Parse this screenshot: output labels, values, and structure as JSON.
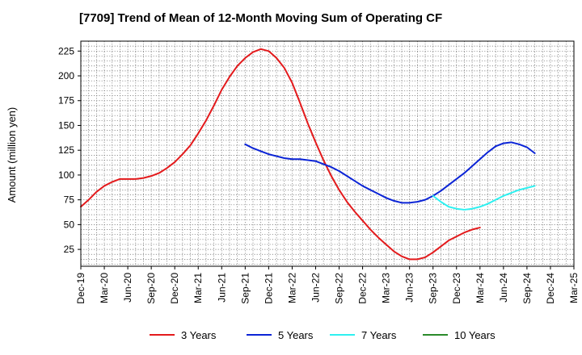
{
  "chart_data": {
    "type": "line",
    "title": "[7709]  Trend of Mean of 12-Month Moving Sum of Operating CF",
    "xlabel": "",
    "ylabel": "Amount (million yen)",
    "ylim": [
      8,
      235
    ],
    "yticks": [
      25,
      50,
      75,
      100,
      125,
      150,
      175,
      200,
      225
    ],
    "categories": [
      "Dec-19",
      "Mar-20",
      "Jun-20",
      "Sep-20",
      "Dec-20",
      "Mar-21",
      "Jun-21",
      "Sep-21",
      "Dec-21",
      "Mar-22",
      "Jun-22",
      "Sep-22",
      "Dec-22",
      "Mar-23",
      "Jun-23",
      "Sep-23",
      "Dec-23",
      "Mar-24",
      "Jun-24",
      "Sep-24",
      "Dec-24",
      "Mar-25"
    ],
    "grid": true,
    "legend_position": "bottom",
    "series": [
      {
        "name": "3 Years",
        "color": "#e31a1c",
        "points": [
          [
            0,
            68
          ],
          [
            1,
            75
          ],
          [
            2,
            83
          ],
          [
            3,
            89
          ],
          [
            4,
            93
          ],
          [
            5,
            96
          ],
          [
            6,
            96
          ],
          [
            7,
            96
          ],
          [
            8,
            97
          ],
          [
            9,
            99
          ],
          [
            10,
            102
          ],
          [
            11,
            107
          ],
          [
            12,
            113
          ],
          [
            13,
            121
          ],
          [
            14,
            130
          ],
          [
            15,
            142
          ],
          [
            16,
            155
          ],
          [
            17,
            170
          ],
          [
            18,
            186
          ],
          [
            19,
            199
          ],
          [
            20,
            210
          ],
          [
            21,
            218
          ],
          [
            22,
            224
          ],
          [
            23,
            227
          ],
          [
            24,
            225
          ],
          [
            25,
            218
          ],
          [
            26,
            208
          ],
          [
            27,
            193
          ],
          [
            28,
            173
          ],
          [
            29,
            152
          ],
          [
            30,
            133
          ],
          [
            31,
            115
          ],
          [
            32,
            99
          ],
          [
            33,
            85
          ],
          [
            34,
            73
          ],
          [
            35,
            63
          ],
          [
            36,
            54
          ],
          [
            37,
            45
          ],
          [
            38,
            37
          ],
          [
            39,
            30
          ],
          [
            40,
            23
          ],
          [
            41,
            18
          ],
          [
            42,
            15
          ],
          [
            43,
            15
          ],
          [
            44,
            17
          ],
          [
            45,
            22
          ],
          [
            46,
            28
          ],
          [
            47,
            34
          ],
          [
            48,
            38
          ],
          [
            49,
            42
          ],
          [
            50,
            45
          ],
          [
            51,
            47
          ]
        ]
      },
      {
        "name": "5 Years",
        "color": "#0b24d6",
        "points": [
          [
            21,
            131
          ],
          [
            22,
            127
          ],
          [
            23,
            124
          ],
          [
            24,
            121
          ],
          [
            25,
            119
          ],
          [
            26,
            117
          ],
          [
            27,
            116
          ],
          [
            28,
            116
          ],
          [
            29,
            115
          ],
          [
            30,
            114
          ],
          [
            31,
            111
          ],
          [
            32,
            108
          ],
          [
            33,
            104
          ],
          [
            34,
            99
          ],
          [
            35,
            94
          ],
          [
            36,
            89
          ],
          [
            37,
            85
          ],
          [
            38,
            81
          ],
          [
            39,
            77
          ],
          [
            40,
            74
          ],
          [
            41,
            72
          ],
          [
            42,
            72
          ],
          [
            43,
            73
          ],
          [
            44,
            75
          ],
          [
            45,
            79
          ],
          [
            46,
            84
          ],
          [
            47,
            90
          ],
          [
            48,
            96
          ],
          [
            49,
            102
          ],
          [
            50,
            109
          ],
          [
            51,
            116
          ],
          [
            52,
            123
          ],
          [
            53,
            129
          ],
          [
            54,
            132
          ],
          [
            55,
            133
          ],
          [
            56,
            131
          ],
          [
            57,
            128
          ],
          [
            58,
            122
          ]
        ]
      },
      {
        "name": "7 Years",
        "color": "#2ef0f0",
        "points": [
          [
            45,
            79
          ],
          [
            46,
            73
          ],
          [
            47,
            68
          ],
          [
            48,
            66
          ],
          [
            49,
            65
          ],
          [
            50,
            66
          ],
          [
            51,
            68
          ],
          [
            52,
            71
          ],
          [
            53,
            75
          ],
          [
            54,
            79
          ],
          [
            55,
            82
          ],
          [
            56,
            85
          ],
          [
            57,
            87
          ],
          [
            58,
            89
          ]
        ]
      },
      {
        "name": "10 Years",
        "color": "#2a8a2a",
        "points": []
      }
    ]
  }
}
